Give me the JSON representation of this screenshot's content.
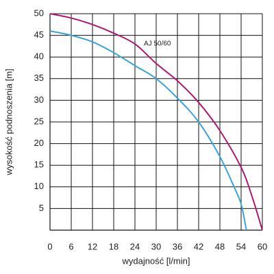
{
  "chart_data": {
    "type": "line",
    "xlabel": "wydajność [l/min]",
    "ylabel": "wysokość podnoszenia [m]",
    "annotation": "AJ 50/60",
    "xlim": [
      0,
      60
    ],
    "ylim": [
      0,
      50
    ],
    "xticks": [
      0,
      6,
      12,
      18,
      24,
      30,
      36,
      42,
      48,
      54,
      60
    ],
    "yticks": [
      5,
      10,
      15,
      20,
      25,
      30,
      35,
      40,
      45,
      50
    ],
    "grid": true,
    "series": [
      {
        "color": "#b0176e",
        "x": [
          0,
          6,
          12,
          18,
          24,
          30,
          36,
          42,
          48,
          54,
          57,
          60
        ],
        "values": [
          50,
          49,
          47.5,
          45.5,
          43,
          38.5,
          34.5,
          29.5,
          23,
          14.5,
          8,
          0
        ]
      },
      {
        "color": "#3aa3d8",
        "x": [
          0,
          6,
          12,
          18,
          24,
          30,
          36,
          42,
          48,
          52,
          54,
          55.5
        ],
        "values": [
          46,
          45,
          43.5,
          41,
          38,
          35,
          30.5,
          25,
          17,
          10,
          6,
          0
        ]
      }
    ]
  }
}
